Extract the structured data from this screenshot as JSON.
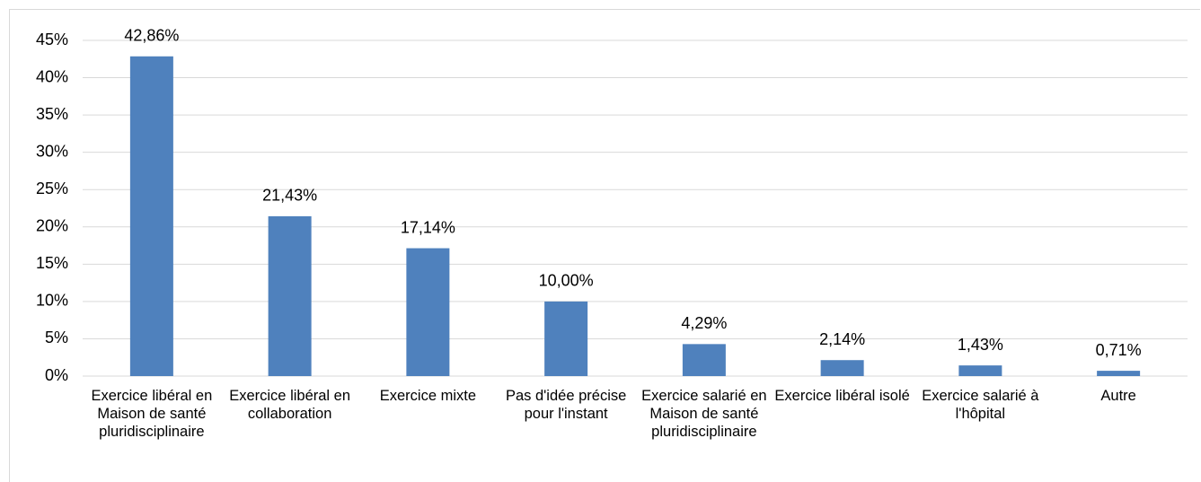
{
  "chart_data": {
    "type": "bar",
    "categories": [
      "Exercice libéral en Maison de santé pluridisciplinaire",
      "Exercice libéral en collaboration",
      "Exercice mixte",
      "Pas d'idée précise pour l'instant",
      "Exercice salarié en Maison de santé pluridisciplinaire",
      "Exercice libéral isolé",
      "Exercice salarié à l'hôpital",
      "Autre"
    ],
    "values": [
      42.86,
      21.43,
      17.14,
      10.0,
      4.29,
      2.14,
      1.43,
      0.71
    ],
    "value_labels": [
      "42,86%",
      "21,43%",
      "17,14%",
      "10,00%",
      "4,29%",
      "2,14%",
      "1,43%",
      "0,71%"
    ],
    "color": "#4f81bd",
    "ylim": [
      0,
      45
    ],
    "yticks": [
      {
        "value": 0,
        "label": "0%"
      },
      {
        "value": 5,
        "label": "5%"
      },
      {
        "value": 10,
        "label": "10%"
      },
      {
        "value": 15,
        "label": "15%"
      },
      {
        "value": 20,
        "label": "20%"
      },
      {
        "value": 25,
        "label": "25%"
      },
      {
        "value": 30,
        "label": "30%"
      },
      {
        "value": 35,
        "label": "35%"
      },
      {
        "value": 40,
        "label": "40%"
      },
      {
        "value": 45,
        "label": "45%"
      }
    ],
    "grid": true
  }
}
